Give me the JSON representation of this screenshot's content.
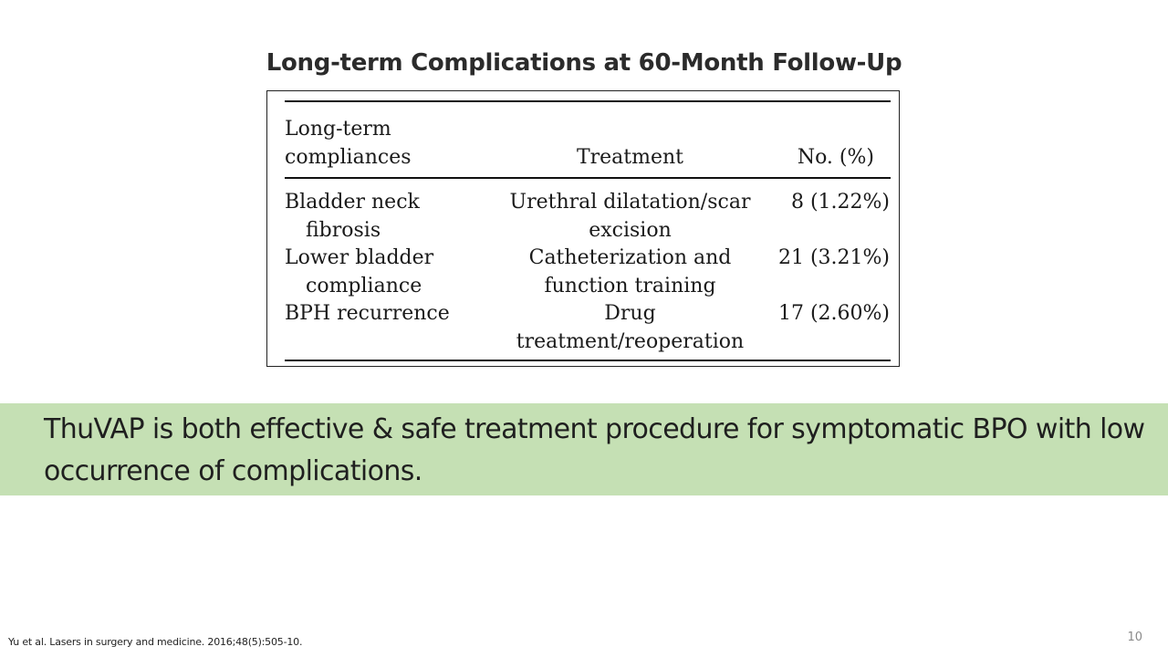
{
  "slide": {
    "title": "Long-term Complications at 60-Month Follow-Up",
    "page_number": "10",
    "citation": "Yu et al. Lasers in surgery and medicine. 2016;48(5):505-10."
  },
  "table": {
    "headers": {
      "col1_line1": "Long-term",
      "col1_line2": "compliances",
      "col2": "Treatment",
      "col3": "No. (%)"
    },
    "rows": [
      {
        "complication_line1": "Bladder neck",
        "complication_line2": "fibrosis",
        "treatment_line1": "Urethral dilatation/scar",
        "treatment_line2": "excision",
        "count": "8 (1.22%)"
      },
      {
        "complication_line1": "Lower bladder",
        "complication_line2": "compliance",
        "treatment_line1": "Catheterization and",
        "treatment_line2": "function training",
        "count": "21 (3.21%)"
      },
      {
        "complication_line1": "BPH recurrence",
        "complication_line2": "",
        "treatment_line1": "Drug",
        "treatment_line2": "treatment/reoperation",
        "count": "17 (2.60%)"
      }
    ]
  },
  "conclusion": {
    "text": "ThuVAP is both effective & safe treatment procedure for symptomatic BPO with low occurrence of complications."
  },
  "colors": {
    "band_background": "#c5e0b4",
    "title_text": "#2b2b2b",
    "page_number_text": "#8a8a8a"
  }
}
